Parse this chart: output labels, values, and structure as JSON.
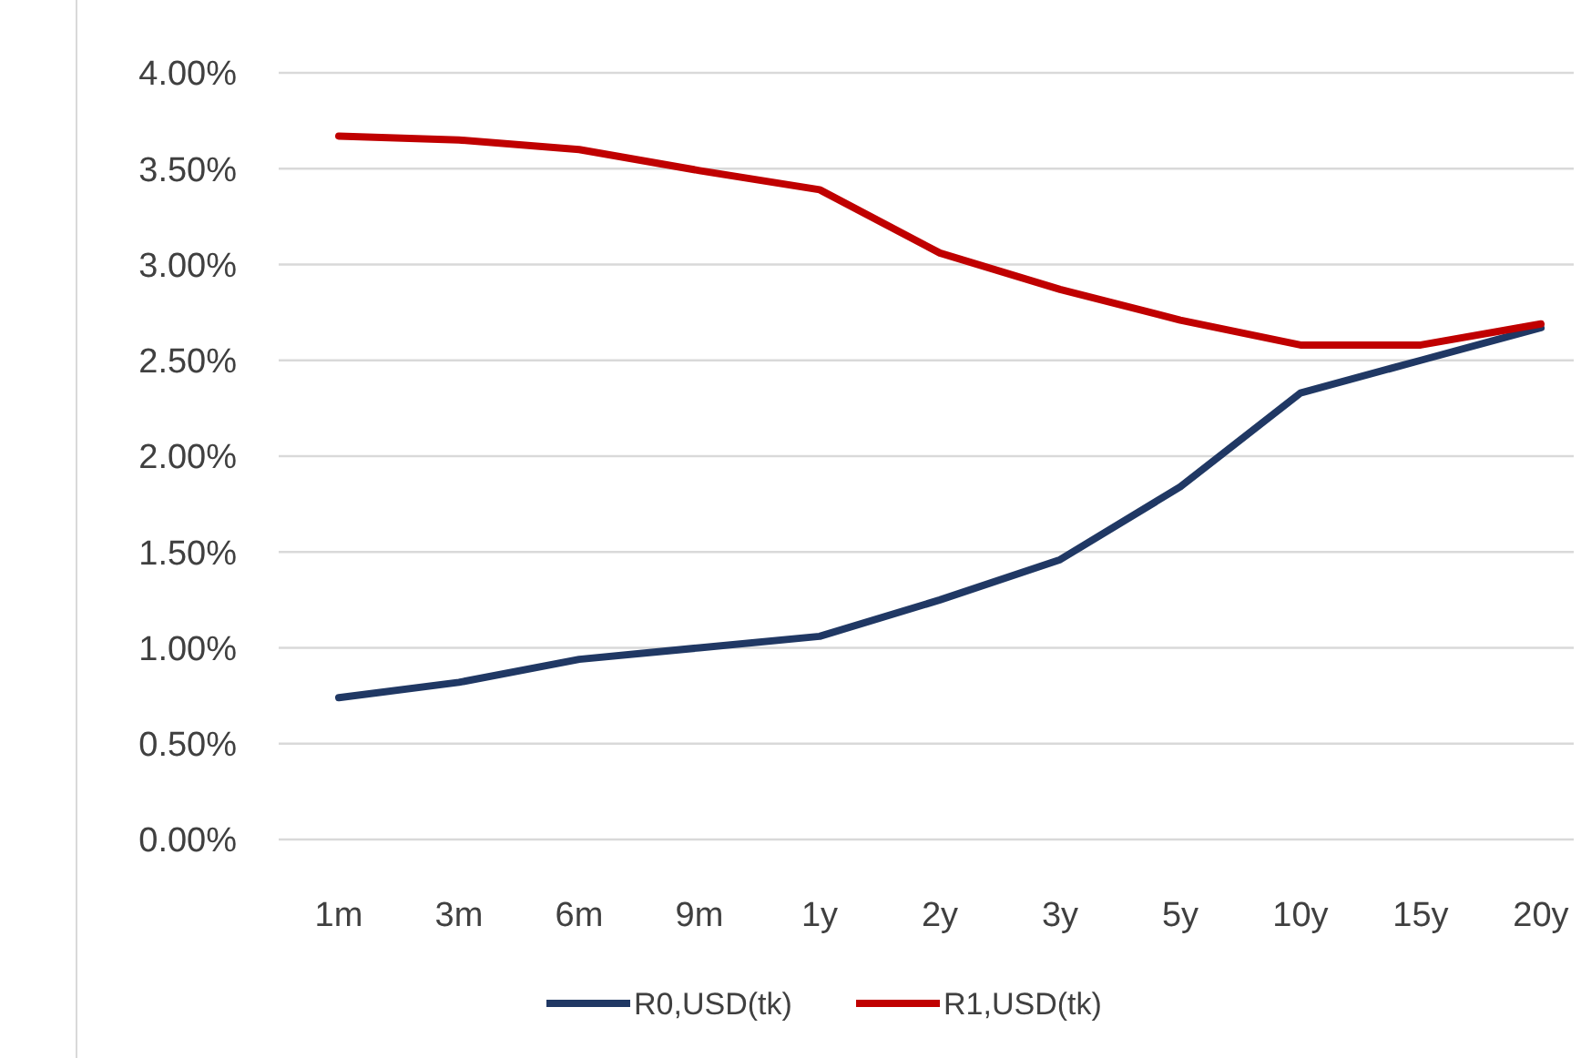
{
  "chart_data": {
    "type": "line",
    "categories": [
      "1m",
      "3m",
      "6m",
      "9m",
      "1y",
      "2y",
      "3y",
      "5y",
      "10y",
      "15y",
      "20y"
    ],
    "series": [
      {
        "name": "R0,USD(tk)",
        "color": "#203864",
        "values": [
          0.74,
          0.82,
          0.94,
          1.0,
          1.06,
          1.25,
          1.46,
          1.84,
          2.33,
          2.5,
          2.67
        ]
      },
      {
        "name": "R1,USD(tk)",
        "color": "#c00000",
        "values": [
          3.67,
          3.65,
          3.6,
          3.49,
          3.39,
          3.06,
          2.87,
          2.71,
          2.58,
          2.58,
          2.69
        ]
      }
    ],
    "ylim": [
      0,
      4
    ],
    "yticks": [
      {
        "value": 0,
        "label": "0.00%"
      },
      {
        "value": 0.5,
        "label": "0.50%"
      },
      {
        "value": 1,
        "label": "1.00%"
      },
      {
        "value": 1.5,
        "label": "1.50%"
      },
      {
        "value": 2,
        "label": "2.00%"
      },
      {
        "value": 2.5,
        "label": "2.50%"
      },
      {
        "value": 3,
        "label": "3.00%"
      },
      {
        "value": 3.5,
        "label": "3.50%"
      },
      {
        "value": 4,
        "label": "4.00%"
      }
    ],
    "grid": "y",
    "legend": "bottom",
    "marker": "none",
    "line_style": "solid"
  }
}
